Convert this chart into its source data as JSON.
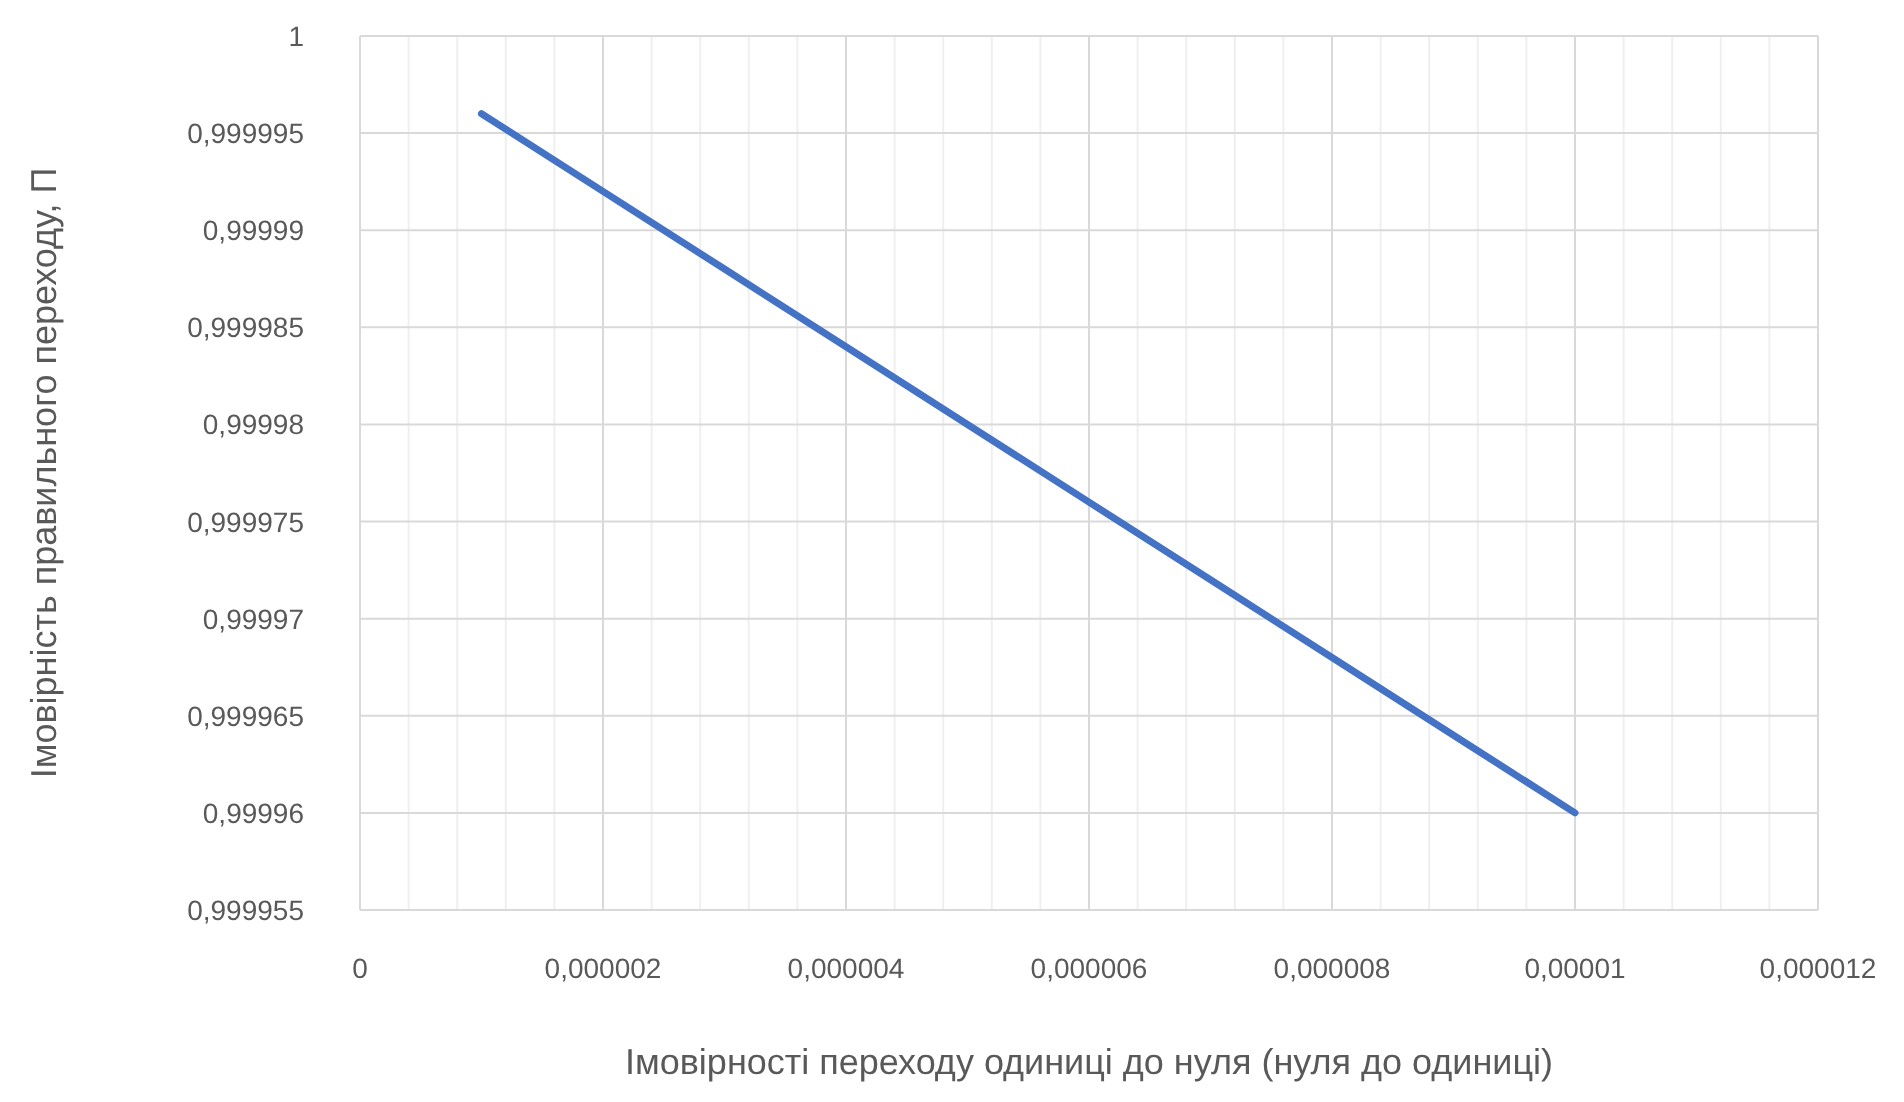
{
  "chart_data": {
    "type": "line",
    "xlabel": "Імовірності переходу одиниці до нуля (нуля до одиниці)",
    "ylabel": "Імовірність правильного переходу, П",
    "x": [
      1e-06,
      2e-06,
      3e-06,
      4e-06,
      5e-06,
      6e-06,
      7e-06,
      8e-06,
      9e-06,
      1e-05
    ],
    "series": [
      {
        "color": "#4472c4",
        "values": [
          0.999996,
          0.999992,
          0.999988,
          0.999984,
          0.99998,
          0.999976,
          0.999972,
          0.999968,
          0.999964,
          0.99996
        ]
      }
    ],
    "xlim": [
      0,
      1.2e-05
    ],
    "xticks": [
      0,
      {
        "value": 2e-06,
        "label": "0,000002"
      },
      {
        "value": 4e-06,
        "label": "0,000004"
      },
      {
        "value": 6e-06,
        "label": "0,000006"
      },
      {
        "value": 8e-06,
        "label": "0,000008"
      },
      {
        "value": 1e-05,
        "label": "0,00001"
      },
      {
        "value": 1.2e-05,
        "label": "0,000012"
      }
    ],
    "ylim": [
      0.999955,
      1
    ],
    "yticks": [
      {
        "value": 0.999955,
        "label": "0,999955"
      },
      {
        "value": 0.99996,
        "label": "0,99996"
      },
      {
        "value": 0.999965,
        "label": "0,999965"
      },
      {
        "value": 0.99997,
        "label": "0,99997"
      },
      {
        "value": 0.999975,
        "label": "0,999975"
      },
      {
        "value": 0.99998,
        "label": "0,99998"
      },
      {
        "value": 0.999985,
        "label": "0,999985"
      },
      {
        "value": 0.99999,
        "label": "0,99999"
      },
      {
        "value": 0.999995,
        "label": "0,999995"
      },
      1
    ],
    "grid": true,
    "marker": "none",
    "line_style": "solid"
  }
}
